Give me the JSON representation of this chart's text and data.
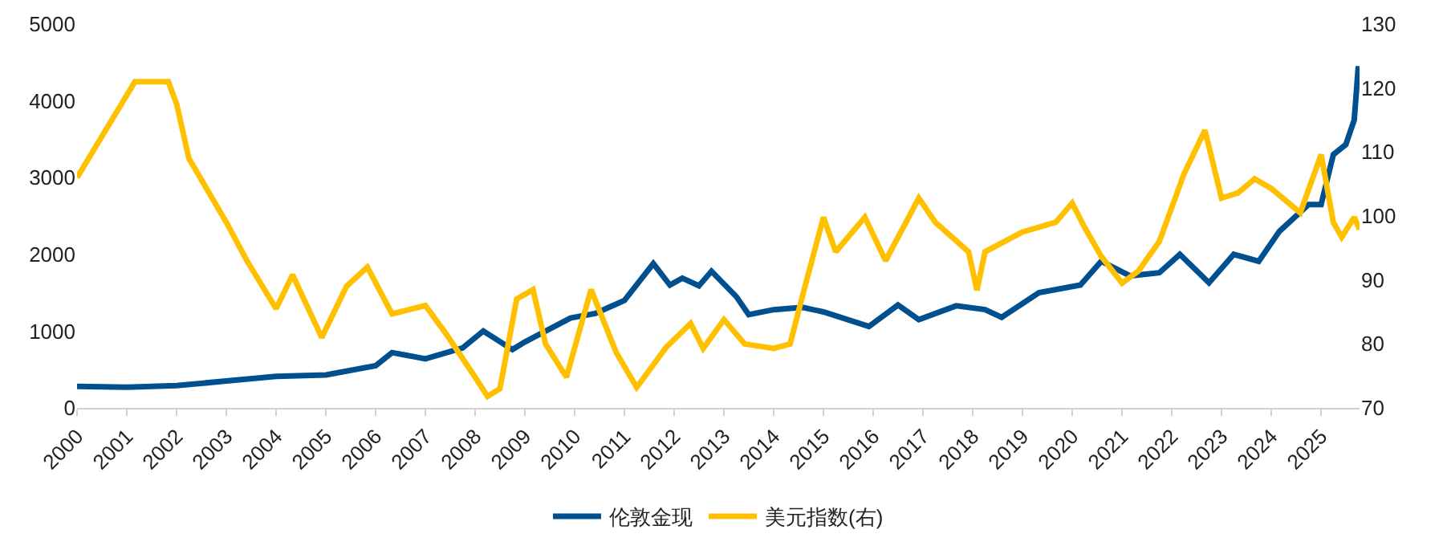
{
  "chart_data": {
    "type": "line",
    "xlim": [
      "2000-01-01",
      "2025-10-10"
    ],
    "xticks": [
      {
        "value": "2000-01-01",
        "label": "2000"
      },
      {
        "value": "2001-01-01",
        "label": "2001"
      },
      {
        "value": "2002-01-01",
        "label": "2002"
      },
      {
        "value": "2003-01-01",
        "label": "2003"
      },
      {
        "value": "2004-01-01",
        "label": "2004"
      },
      {
        "value": "2005-01-01",
        "label": "2005"
      },
      {
        "value": "2006-01-01",
        "label": "2006"
      },
      {
        "value": "2007-01-01",
        "label": "2007"
      },
      {
        "value": "2008-01-01",
        "label": "2008"
      },
      {
        "value": "2009-01-01",
        "label": "2009"
      },
      {
        "value": "2010-01-01",
        "label": "2010"
      },
      {
        "value": "2011-01-01",
        "label": "2011"
      },
      {
        "value": "2012-01-01",
        "label": "2012"
      },
      {
        "value": "2013-01-01",
        "label": "2013"
      },
      {
        "value": "2014-01-01",
        "label": "2014"
      },
      {
        "value": "2015-01-01",
        "label": "2015"
      },
      {
        "value": "2016-01-01",
        "label": "2016"
      },
      {
        "value": "2017-01-01",
        "label": "2017"
      },
      {
        "value": "2018-01-01",
        "label": "2018"
      },
      {
        "value": "2019-01-01",
        "label": "2019"
      },
      {
        "value": "2020-01-01",
        "label": "2020"
      },
      {
        "value": "2021-01-01",
        "label": "2021"
      },
      {
        "value": "2022-01-01",
        "label": "2022"
      },
      {
        "value": "2023-01-01",
        "label": "2023"
      },
      {
        "value": "2024-01-01",
        "label": "2024"
      },
      {
        "value": "2025-01-01",
        "label": "2025"
      }
    ],
    "ylim": [
      0,
      5000
    ],
    "yticks": [
      0,
      1000,
      2000,
      3000,
      4000,
      5000
    ],
    "y2lim": [
      70,
      130
    ],
    "y2ticks": [
      70,
      80,
      90,
      100,
      110,
      120,
      130
    ],
    "legend": "bottom",
    "marker": "none",
    "line_style": "solid",
    "series": [
      {
        "name": "伦敦金现",
        "color": "#00508f",
        "x": [
          "2000-01",
          "2001-01",
          "2002-01",
          "2003-01",
          "2004-01",
          "2005-01",
          "2006-01",
          "2006-05",
          "2007-01",
          "2007-10",
          "2008-03",
          "2008-10",
          "2009-01",
          "2009-12",
          "2010-06",
          "2011-01",
          "2011-08",
          "2011-12",
          "2012-03",
          "2012-07",
          "2012-10",
          "2013-04",
          "2013-07",
          "2014-01",
          "2014-08",
          "2015-01",
          "2015-12",
          "2016-07",
          "2016-12",
          "2017-09",
          "2018-04",
          "2018-08",
          "2019-05",
          "2020-03",
          "2020-08",
          "2021-03",
          "2021-10",
          "2022-03",
          "2022-10",
          "2023-04",
          "2023-10",
          "2024-03",
          "2024-10",
          "2025-01",
          "2025-04",
          "2025-07",
          "2025-09",
          "2025-10-01",
          "2025-10-10"
        ],
        "values": [
          280,
          270,
          290,
          350,
          410,
          430,
          550,
          720,
          640,
          780,
          1000,
          760,
          860,
          1170,
          1230,
          1400,
          1880,
          1600,
          1690,
          1590,
          1780,
          1450,
          1215,
          1280,
          1310,
          1250,
          1060,
          1340,
          1150,
          1330,
          1280,
          1180,
          1500,
          1600,
          1910,
          1720,
          1760,
          2000,
          1630,
          2000,
          1910,
          2300,
          2650,
          2650,
          3300,
          3430,
          3750,
          4450,
          4190
        ],
        "axis": "y"
      },
      {
        "name": "美元指数(右)",
        "color": "#ffc000",
        "x": [
          "2000-01",
          "2001-03",
          "2001-11",
          "2002-01",
          "2002-04",
          "2003-01",
          "2003-06",
          "2004-01",
          "2004-05",
          "2004-12",
          "2005-06",
          "2005-11",
          "2006-05",
          "2007-01",
          "2007-06",
          "2008-01",
          "2008-04",
          "2008-07",
          "2008-11",
          "2009-03",
          "2009-06",
          "2009-11",
          "2010-05",
          "2010-11",
          "2011-04",
          "2011-11",
          "2012-05",
          "2012-08",
          "2013-01",
          "2013-06",
          "2014-01",
          "2014-05",
          "2014-08",
          "2015-01",
          "2015-04",
          "2015-11",
          "2016-04",
          "2016-12",
          "2017-04",
          "2017-12",
          "2018-02",
          "2018-04",
          "2019-01",
          "2019-09",
          "2020-01",
          "2020-04",
          "2020-08",
          "2021-01",
          "2021-05",
          "2021-10",
          "2022-04",
          "2022-09",
          "2023-01",
          "2023-05",
          "2023-09",
          "2024-01",
          "2024-08",
          "2025-01",
          "2025-04",
          "2025-06",
          "2025-09",
          "2025-10-10"
        ],
        "values": [
          106,
          121,
          121,
          117.5,
          109,
          99,
          93,
          85.5,
          90.8,
          81,
          89,
          92,
          84.7,
          86,
          81.6,
          74.8,
          71.8,
          73,
          87,
          88.5,
          80,
          74.8,
          88.5,
          78.7,
          73.2,
          79.4,
          83.2,
          79.3,
          83.8,
          80,
          79.3,
          80,
          87.6,
          99.8,
          94.4,
          99.8,
          93,
          102.8,
          99,
          94.4,
          88.4,
          94.4,
          97.5,
          99,
          102,
          98.2,
          93.7,
          89.5,
          91.4,
          96,
          106.6,
          113.4,
          102.8,
          103.6,
          105.8,
          104.3,
          100.5,
          109.6,
          99,
          96.7,
          99.8,
          97.9
        ],
        "axis": "y2"
      }
    ]
  }
}
